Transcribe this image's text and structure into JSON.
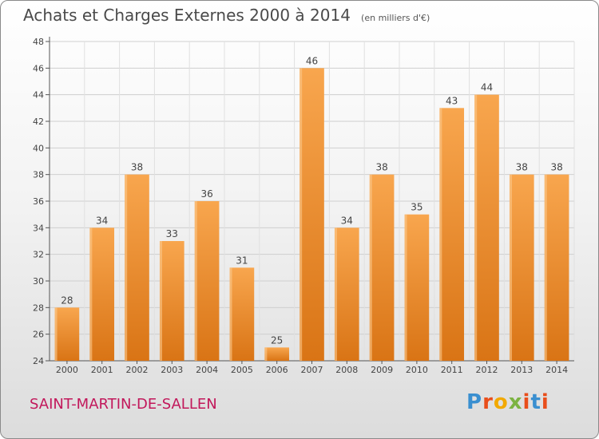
{
  "title": "Achats et Charges Externes 2000 à 2014",
  "unit": "(en milliers d'€)",
  "commune": "SAINT-MARTIN-DE-SALLEN",
  "logo": "Proxiti",
  "colors": {
    "bar_light": "#f8a64e",
    "bar_dark": "#d97415",
    "commune_text": "#c2185b",
    "grid": "#cfcfcf"
  },
  "chart_data": {
    "type": "bar",
    "title": "Achats et Charges Externes 2000 à 2014",
    "subtitle": "(en milliers d'€)",
    "categories": [
      "2000",
      "2001",
      "2002",
      "2003",
      "2004",
      "2005",
      "2006",
      "2007",
      "2008",
      "2009",
      "2010",
      "2011",
      "2012",
      "2013",
      "2014"
    ],
    "values": [
      28,
      34,
      38,
      33,
      36,
      31,
      25,
      46,
      34,
      38,
      35,
      43,
      44,
      38,
      38
    ],
    "ylim": [
      24,
      48
    ],
    "yticks": [
      24,
      26,
      28,
      30,
      32,
      34,
      36,
      38,
      40,
      42,
      44,
      46,
      48
    ],
    "grid": true,
    "data_labels": true
  }
}
